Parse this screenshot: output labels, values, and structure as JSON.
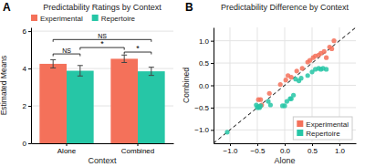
{
  "chart_data": [
    {
      "type": "bar",
      "title": "Predictability Ratings by Context",
      "xlabel": "Context",
      "ylabel": "Estimated Means",
      "categories": [
        "Alone",
        "Combined"
      ],
      "series": [
        {
          "name": "Experimental",
          "color": "#F4715A",
          "values": [
            4.25,
            4.52
          ],
          "errors": [
            0.22,
            0.2
          ]
        },
        {
          "name": "Repertoire",
          "color": "#26C6A6",
          "values": [
            3.88,
            3.85
          ],
          "errors": [
            0.28,
            0.22
          ]
        }
      ],
      "ylim": [
        0,
        6.2
      ],
      "yticks": [
        0,
        2,
        4,
        6
      ],
      "grid": "y",
      "legend": "upper left",
      "annotations": [
        {
          "text": "A"
        },
        {
          "text": "NS",
          "y": 4.78,
          "from": {
            "category": "Alone",
            "series": "Experimental"
          },
          "to": {
            "category": "Alone",
            "series": "Repertoire"
          }
        },
        {
          "text": "NS",
          "y": 5.55,
          "from": {
            "category": "Alone",
            "series": "Experimental"
          },
          "to": {
            "category": "Combined",
            "series": "Repertoire"
          }
        },
        {
          "text": "*",
          "y": 5.12,
          "from": {
            "category": "Alone",
            "series": "Repertoire"
          },
          "to": {
            "category": "Combined",
            "series": "Experimental"
          }
        },
        {
          "text": "*",
          "y": 4.88,
          "from": {
            "category": "Combined",
            "series": "Experimental"
          },
          "to": {
            "category": "Combined",
            "series": "Repertoire"
          }
        }
      ]
    },
    {
      "type": "scatter",
      "title": "Predictability Difference by Context",
      "xlabel": "Alone",
      "ylabel": "Combined",
      "series": [
        {
          "name": "Experimental",
          "color": "#F4715A",
          "x": [
            -0.48,
            -0.46,
            -0.44,
            -0.42,
            -0.28,
            -0.08,
            0.02,
            0.06,
            0.12,
            0.22,
            0.32,
            0.42,
            0.46,
            0.52,
            0.56,
            0.62,
            0.66,
            0.72,
            0.76,
            0.82,
            0.86,
            0.9
          ],
          "y": [
            -0.32,
            -0.48,
            -0.32,
            -0.44,
            -0.18,
            0.02,
            0.12,
            0.22,
            0.18,
            0.32,
            0.38,
            0.52,
            0.56,
            0.62,
            0.66,
            0.68,
            0.72,
            0.76,
            0.62,
            0.86,
            0.82,
            1.0
          ]
        },
        {
          "name": "Repertoire",
          "color": "#26C6A6",
          "x": [
            -1.05,
            -0.52,
            -0.5,
            -0.48,
            -0.46,
            -0.44,
            -0.3,
            -0.26,
            -0.04,
            0.0,
            0.04,
            0.1,
            0.12,
            0.16,
            0.2,
            0.26,
            0.3,
            0.42,
            0.5,
            0.56,
            0.62,
            0.66,
            0.7,
            0.76
          ],
          "y": [
            -1.05,
            -0.44,
            -0.5,
            -0.48,
            -0.5,
            -0.46,
            -0.36,
            -0.44,
            -0.46,
            -0.46,
            -0.36,
            -0.3,
            -0.3,
            -0.22,
            0.14,
            0.1,
            0.16,
            0.22,
            0.3,
            0.36,
            0.38,
            0.36,
            0.38,
            0.36
          ]
        }
      ],
      "xlim": [
        -1.3,
        1.3
      ],
      "ylim": [
        -1.3,
        1.3
      ],
      "xticks": [
        {
          "value": -1.0,
          "label": "−1.0"
        },
        {
          "value": -0.5,
          "label": "−0.5"
        },
        {
          "value": 0.0,
          "label": "0.0"
        },
        0.5,
        {
          "value": 1.0,
          "label": "1.0"
        }
      ],
      "yticks": [
        {
          "value": -1.0,
          "label": "−1.0"
        },
        {
          "value": -0.5,
          "label": "−0.5"
        },
        {
          "value": 0.0,
          "label": "0.0"
        },
        0.5,
        {
          "value": 1.0,
          "label": "1.0"
        }
      ],
      "grid": true,
      "legend": "lower right",
      "annotations": [
        {
          "text": "B"
        },
        {
          "x": [
            -1.3,
            1.3
          ],
          "y": [
            -1.3,
            1.3
          ],
          "line_style": "dashed",
          "color": "#000000"
        }
      ]
    }
  ]
}
